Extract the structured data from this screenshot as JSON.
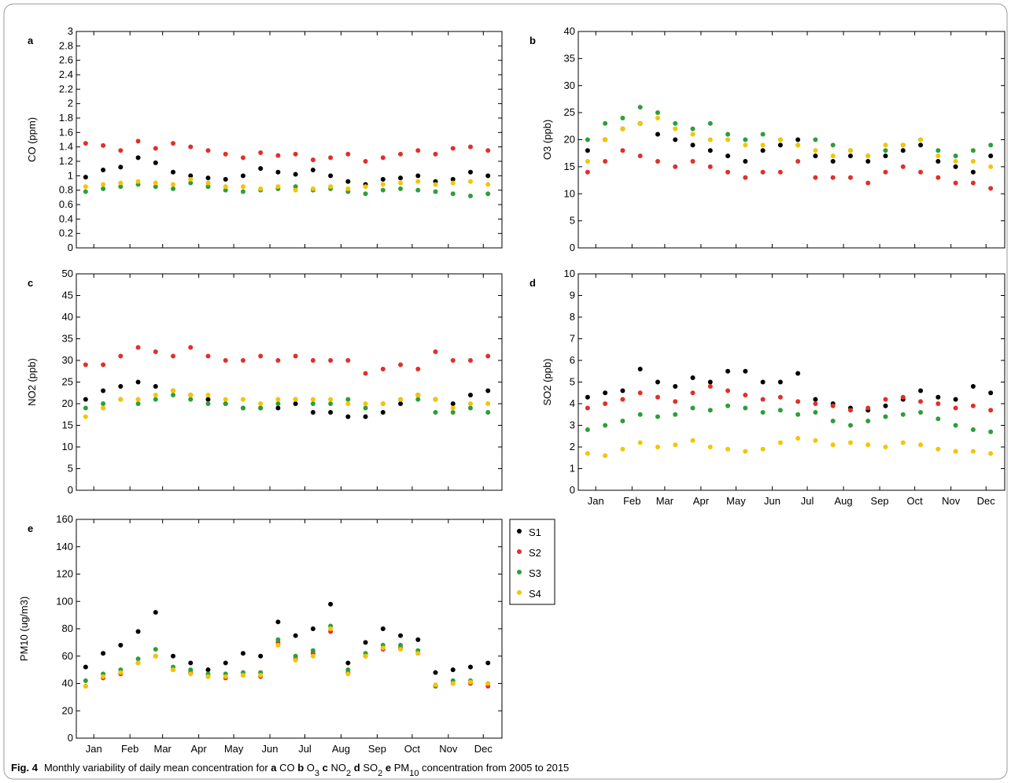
{
  "chart_data": [
    {
      "type": "scatter",
      "panel": "a",
      "ylabel": "CO (ppm)",
      "xlim": [
        0,
        365
      ],
      "ylim": [
        0,
        3
      ],
      "xticks": [
        15,
        46,
        74,
        105,
        135,
        166,
        196,
        227,
        258,
        288,
        319,
        349
      ],
      "yticks": [
        0,
        0.2,
        0.4,
        0.6,
        0.8,
        1,
        1.2,
        1.4,
        1.6,
        1.8,
        2,
        2.2,
        2.4,
        2.6,
        2.8,
        3
      ],
      "x": [
        8,
        23,
        38,
        53,
        68,
        83,
        98,
        113,
        128,
        143,
        158,
        173,
        188,
        203,
        218,
        233,
        248,
        263,
        278,
        293,
        308,
        323,
        338,
        353
      ],
      "series": [
        {
          "color": "#000000",
          "values": [
            0.98,
            1.08,
            1.12,
            1.25,
            1.18,
            1.05,
            1.0,
            0.97,
            0.95,
            1.0,
            1.1,
            1.05,
            1.02,
            1.08,
            1.0,
            0.92,
            0.88,
            0.95,
            0.97,
            1.0,
            0.92,
            0.95,
            1.05,
            1.0
          ]
        },
        {
          "color": "#e0302a",
          "values": [
            1.45,
            1.42,
            1.35,
            1.48,
            1.38,
            1.45,
            1.4,
            1.35,
            1.3,
            1.25,
            1.32,
            1.28,
            1.3,
            1.22,
            1.25,
            1.3,
            1.2,
            1.25,
            1.3,
            1.35,
            1.3,
            1.38,
            1.4,
            1.35
          ]
        },
        {
          "color": "#2e9e3a",
          "values": [
            0.78,
            0.82,
            0.85,
            0.88,
            0.85,
            0.82,
            0.9,
            0.85,
            0.8,
            0.78,
            0.8,
            0.82,
            0.85,
            0.8,
            0.82,
            0.78,
            0.75,
            0.8,
            0.82,
            0.8,
            0.78,
            0.75,
            0.72,
            0.75
          ]
        },
        {
          "color": "#f5c400",
          "values": [
            0.85,
            0.88,
            0.9,
            0.92,
            0.9,
            0.88,
            0.95,
            0.9,
            0.85,
            0.85,
            0.82,
            0.85,
            0.8,
            0.82,
            0.85,
            0.82,
            0.85,
            0.88,
            0.9,
            0.92,
            0.88,
            0.9,
            0.92,
            0.88
          ]
        }
      ]
    },
    {
      "type": "scatter",
      "panel": "b",
      "ylabel": "O3 (ppb)",
      "xlim": [
        0,
        365
      ],
      "ylim": [
        0,
        40
      ],
      "xticks": [
        15,
        46,
        74,
        105,
        135,
        166,
        196,
        227,
        258,
        288,
        319,
        349
      ],
      "yticks": [
        0,
        5,
        10,
        15,
        20,
        25,
        30,
        35,
        40
      ],
      "x": [
        8,
        23,
        38,
        53,
        68,
        83,
        98,
        113,
        128,
        143,
        158,
        173,
        188,
        203,
        218,
        233,
        248,
        263,
        278,
        293,
        308,
        323,
        338,
        353
      ],
      "series": [
        {
          "color": "#000000",
          "values": [
            18,
            20,
            22,
            23,
            21,
            20,
            19,
            18,
            17,
            16,
            18,
            19,
            20,
            17,
            16,
            17,
            16,
            17,
            18,
            19,
            16,
            15,
            14,
            17
          ]
        },
        {
          "color": "#e0302a",
          "values": [
            14,
            16,
            18,
            17,
            16,
            15,
            16,
            15,
            14,
            13,
            14,
            14,
            16,
            13,
            13,
            13,
            12,
            14,
            15,
            14,
            13,
            12,
            12,
            11
          ]
        },
        {
          "color": "#2e9e3a",
          "values": [
            20,
            23,
            24,
            26,
            25,
            23,
            22,
            23,
            21,
            20,
            21,
            20,
            19,
            20,
            19,
            18,
            17,
            18,
            19,
            20,
            18,
            17,
            18,
            19
          ]
        },
        {
          "color": "#f5c400",
          "values": [
            16,
            20,
            22,
            23,
            24,
            22,
            21,
            20,
            20,
            19,
            19,
            20,
            19,
            18,
            17,
            18,
            17,
            19,
            19,
            20,
            17,
            16,
            16,
            15
          ]
        }
      ]
    },
    {
      "type": "scatter",
      "panel": "c",
      "ylabel": "NO2 (ppb)",
      "xlim": [
        0,
        365
      ],
      "ylim": [
        0,
        50
      ],
      "xticks": [
        15,
        46,
        74,
        105,
        135,
        166,
        196,
        227,
        258,
        288,
        319,
        349
      ],
      "yticks": [
        0,
        5,
        10,
        15,
        20,
        25,
        30,
        35,
        40,
        45,
        50
      ],
      "x": [
        8,
        23,
        38,
        53,
        68,
        83,
        98,
        113,
        128,
        143,
        158,
        173,
        188,
        203,
        218,
        233,
        248,
        263,
        278,
        293,
        308,
        323,
        338,
        353
      ],
      "series": [
        {
          "color": "#000000",
          "values": [
            21,
            23,
            24,
            25,
            24,
            23,
            22,
            21,
            20,
            19,
            19,
            19,
            20,
            18,
            18,
            17,
            17,
            18,
            20,
            22,
            21,
            20,
            22,
            23
          ]
        },
        {
          "color": "#e0302a",
          "values": [
            29,
            29,
            31,
            33,
            32,
            31,
            33,
            31,
            30,
            30,
            31,
            30,
            31,
            30,
            30,
            30,
            27,
            28,
            29,
            28,
            32,
            30,
            30,
            31
          ]
        },
        {
          "color": "#2e9e3a",
          "values": [
            19,
            20,
            21,
            20,
            21,
            22,
            21,
            20,
            20,
            19,
            19,
            20,
            21,
            20,
            20,
            21,
            19,
            20,
            21,
            21,
            18,
            18,
            19,
            18
          ]
        },
        {
          "color": "#f5c400",
          "values": [
            17,
            19,
            21,
            21,
            22,
            23,
            22,
            22,
            21,
            21,
            20,
            21,
            21,
            21,
            21,
            20,
            20,
            20,
            21,
            22,
            21,
            19,
            20,
            20
          ]
        }
      ]
    },
    {
      "type": "scatter",
      "panel": "d",
      "ylabel": "SO2 (ppb)",
      "xlim": [
        0,
        365
      ],
      "ylim": [
        0,
        10
      ],
      "xticks": [
        {
          "value": 15,
          "label": "Jan"
        },
        {
          "value": 46,
          "label": "Feb"
        },
        {
          "value": 74,
          "label": "Mar"
        },
        {
          "value": 105,
          "label": "Apr"
        },
        {
          "value": 135,
          "label": "May"
        },
        {
          "value": 166,
          "label": "Jun"
        },
        {
          "value": 196,
          "label": "Jul"
        },
        {
          "value": 227,
          "label": "Aug"
        },
        {
          "value": 258,
          "label": "Sep"
        },
        {
          "value": 288,
          "label": "Oct"
        },
        {
          "value": 319,
          "label": "Nov"
        },
        {
          "value": 349,
          "label": "Dec"
        }
      ],
      "yticks": [
        0,
        1,
        2,
        3,
        4,
        5,
        6,
        7,
        8,
        9,
        10
      ],
      "x": [
        8,
        23,
        38,
        53,
        68,
        83,
        98,
        113,
        128,
        143,
        158,
        173,
        188,
        203,
        218,
        233,
        248,
        263,
        278,
        293,
        308,
        323,
        338,
        353
      ],
      "series": [
        {
          "color": "#000000",
          "values": [
            4.3,
            4.5,
            4.6,
            5.6,
            5.0,
            4.8,
            5.2,
            5.0,
            5.5,
            5.5,
            5.0,
            5.0,
            5.4,
            4.2,
            4.0,
            3.8,
            3.7,
            3.9,
            4.2,
            4.6,
            4.3,
            4.2,
            4.8,
            4.5
          ]
        },
        {
          "color": "#e0302a",
          "values": [
            3.8,
            4.0,
            4.2,
            4.5,
            4.3,
            4.1,
            4.5,
            4.8,
            4.6,
            4.4,
            4.2,
            4.3,
            4.1,
            4.0,
            3.9,
            3.7,
            3.8,
            4.2,
            4.3,
            4.1,
            4.0,
            3.8,
            3.9,
            3.7
          ]
        },
        {
          "color": "#2e9e3a",
          "values": [
            2.8,
            3.0,
            3.2,
            3.5,
            3.4,
            3.5,
            3.8,
            3.7,
            3.9,
            3.8,
            3.6,
            3.7,
            3.5,
            3.6,
            3.2,
            3.0,
            3.2,
            3.4,
            3.5,
            3.6,
            3.3,
            3.0,
            2.8,
            2.7
          ]
        },
        {
          "color": "#f5c400",
          "values": [
            1.7,
            1.6,
            1.9,
            2.2,
            2.0,
            2.1,
            2.3,
            2.0,
            1.9,
            1.8,
            1.9,
            2.2,
            2.4,
            2.3,
            2.1,
            2.2,
            2.1,
            2.0,
            2.2,
            2.1,
            1.9,
            1.8,
            1.8,
            1.7
          ]
        }
      ]
    },
    {
      "type": "scatter",
      "panel": "e",
      "ylabel": "PM10 (ug/m3)",
      "xlim": [
        0,
        365
      ],
      "ylim": [
        0,
        160
      ],
      "legend": true,
      "xticks": [
        {
          "value": 15,
          "label": "Jan"
        },
        {
          "value": 46,
          "label": "Feb"
        },
        {
          "value": 74,
          "label": "Mar"
        },
        {
          "value": 105,
          "label": "Apr"
        },
        {
          "value": 135,
          "label": "May"
        },
        {
          "value": 166,
          "label": "Jun"
        },
        {
          "value": 196,
          "label": "Jul"
        },
        {
          "value": 227,
          "label": "Aug"
        },
        {
          "value": 258,
          "label": "Sep"
        },
        {
          "value": 288,
          "label": "Oct"
        },
        {
          "value": 319,
          "label": "Nov"
        },
        {
          "value": 349,
          "label": "Dec"
        }
      ],
      "yticks": [
        0,
        20,
        40,
        60,
        80,
        100,
        120,
        140,
        160
      ],
      "x": [
        8,
        23,
        38,
        53,
        68,
        83,
        98,
        113,
        128,
        143,
        158,
        173,
        188,
        203,
        218,
        233,
        248,
        263,
        278,
        293,
        308,
        323,
        338,
        353
      ],
      "series": [
        {
          "name": "S1",
          "color": "#000000",
          "values": [
            52,
            62,
            68,
            78,
            92,
            60,
            55,
            50,
            55,
            62,
            60,
            85,
            75,
            80,
            98,
            55,
            70,
            80,
            75,
            72,
            48,
            50,
            52,
            55
          ]
        },
        {
          "name": "S2",
          "color": "#e0302a",
          "values": [
            38,
            44,
            47,
            55,
            60,
            50,
            48,
            45,
            44,
            46,
            45,
            70,
            58,
            62,
            78,
            48,
            60,
            65,
            66,
            62,
            38,
            40,
            40,
            38
          ]
        },
        {
          "name": "S3",
          "color": "#2e9e3a",
          "values": [
            42,
            47,
            50,
            58,
            65,
            52,
            50,
            47,
            47,
            48,
            48,
            72,
            60,
            64,
            82,
            50,
            62,
            68,
            68,
            64,
            38,
            42,
            42,
            40
          ]
        },
        {
          "name": "S4",
          "color": "#f5c400",
          "values": [
            38,
            45,
            48,
            55,
            60,
            50,
            47,
            45,
            45,
            46,
            46,
            68,
            57,
            60,
            80,
            47,
            60,
            66,
            65,
            62,
            39,
            40,
            41,
            40
          ]
        }
      ]
    }
  ],
  "caption": {
    "label": "Fig. 4",
    "parts": [
      {
        "text": "Monthly variability of daily mean concentration for ",
        "style": "normal"
      },
      {
        "text": "a",
        "style": "bold"
      },
      {
        "text": " CO ",
        "style": "normal"
      },
      {
        "text": "b",
        "style": "bold"
      },
      {
        "text": " O",
        "style": "normal"
      },
      {
        "text": "3",
        "style": "sub"
      },
      {
        "text": " ",
        "style": "normal"
      },
      {
        "text": "c",
        "style": "bold"
      },
      {
        "text": " NO",
        "style": "normal"
      },
      {
        "text": "2",
        "style": "sub"
      },
      {
        "text": " ",
        "style": "normal"
      },
      {
        "text": "d",
        "style": "bold"
      },
      {
        "text": " SO",
        "style": "normal"
      },
      {
        "text": "2",
        "style": "sub"
      },
      {
        "text": " ",
        "style": "normal"
      },
      {
        "text": "e",
        "style": "bold"
      },
      {
        "text": " PM",
        "style": "normal"
      },
      {
        "text": "10",
        "style": "sub"
      },
      {
        "text": " concentration from 2005 to 2015",
        "style": "normal"
      }
    ]
  }
}
